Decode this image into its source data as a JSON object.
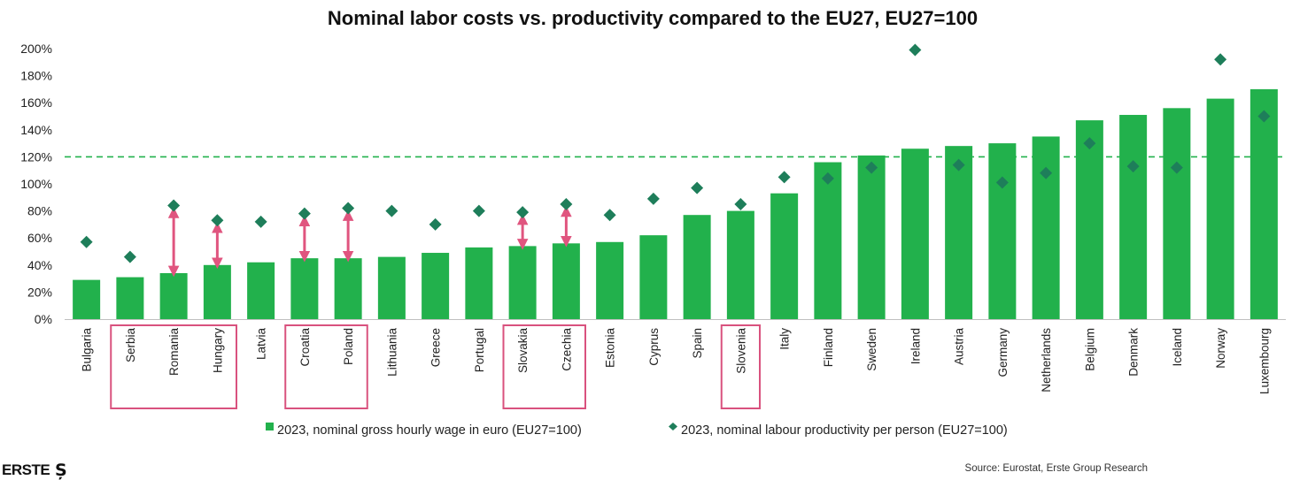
{
  "chart_data": {
    "type": "bar",
    "title": "Nominal labor costs vs. productivity compared to the EU27, EU27=100",
    "categories": [
      "Bulgaria",
      "Serbia",
      "Romania",
      "Hungary",
      "Latvia",
      "Croatia",
      "Poland",
      "Lithuania",
      "Greece",
      "Portugal",
      "Slovakia",
      "Czechia",
      "Estonia",
      "Cyprus",
      "Spain",
      "Slovenia",
      "Italy",
      "Finland",
      "Sweden",
      "Ireland",
      "Austria",
      "Germany",
      "Netherlands",
      "Belgium",
      "Denmark",
      "Iceland",
      "Norway",
      "Luxembourg"
    ],
    "series": [
      {
        "name": "2023, nominal gross hourly wage in euro (EU27=100)",
        "type": "bar",
        "color": "#22b14c",
        "values": [
          29,
          31,
          34,
          40,
          42,
          45,
          45,
          46,
          49,
          53,
          54,
          56,
          57,
          62,
          77,
          80,
          93,
          116,
          121,
          126,
          128,
          130,
          135,
          147,
          151,
          156,
          163,
          170
        ]
      },
      {
        "name": "2023, nominal labour productivity per person (EU27=100)",
        "type": "scatter",
        "marker": "diamond",
        "color": "#1e7e5a",
        "values": [
          57,
          46,
          84,
          73,
          72,
          78,
          82,
          80,
          70,
          80,
          79,
          85,
          77,
          89,
          97,
          85,
          105,
          104,
          112,
          199,
          114,
          101,
          108,
          130,
          113,
          112,
          192,
          150
        ]
      }
    ],
    "ylim": [
      0,
      200
    ],
    "yticks": [
      "0%",
      "20%",
      "40%",
      "60%",
      "80%",
      "100%",
      "120%",
      "140%",
      "160%",
      "180%",
      "200%"
    ],
    "reference_line": {
      "value": 120,
      "style": "dashed",
      "color": "#22b14c"
    },
    "gap_arrows": [
      "Romania",
      "Hungary",
      "Croatia",
      "Poland",
      "Slovakia",
      "Czechia"
    ],
    "highlight_boxes": [
      [
        "Serbia",
        "Hungary"
      ],
      [
        "Croatia",
        "Poland"
      ],
      [
        "Slovakia",
        "Czechia"
      ],
      [
        "Slovenia",
        "Slovenia"
      ]
    ],
    "arrow_color": "#e0557f",
    "box_color": "#d9527e",
    "legend_position": "bottom",
    "grid": false
  },
  "source": "Source: Eurostat, Erste Group Research",
  "logo": {
    "text": "ERSTE"
  }
}
